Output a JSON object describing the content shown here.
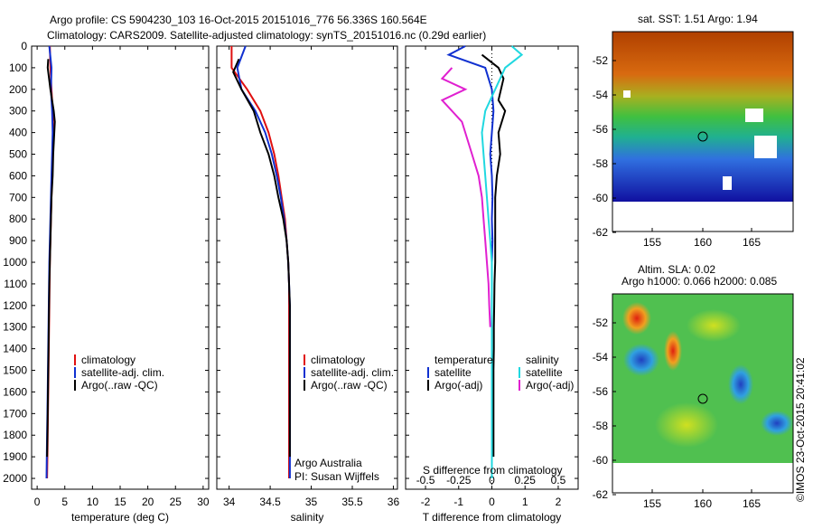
{
  "header": {
    "line1": "Argo profile: CS 5904230_103 16-Oct-2015 20151016_776 56.336S 160.564E",
    "line2": "Climatology: CARS2009. Satellite-adjusted climatology: synTS_20151016.nc (0.29d earlier)"
  },
  "colors": {
    "climatology": "#e01010",
    "satellite": "#1030d0",
    "argo": "#000000",
    "salinity_satellite": "#20d8e0",
    "salinity_argo": "#e020d0"
  },
  "chart_data": [
    {
      "type": "line",
      "id": "temperature",
      "xlabel": "temperature (deg C)",
      "ylabel": "",
      "xlim": [
        -1,
        31
      ],
      "ylim": [
        2050,
        0
      ],
      "xticks": [
        "0",
        "5",
        "10",
        "15",
        "20",
        "25",
        "30"
      ],
      "xtick_values": [
        0,
        5,
        10,
        15,
        20,
        25,
        30
      ],
      "yticks": [
        "0",
        "100",
        "200",
        "300",
        "400",
        "500",
        "600",
        "700",
        "800",
        "900",
        "1000",
        "1100",
        "1200",
        "1300",
        "1400",
        "1500",
        "1600",
        "1700",
        "1800",
        "1900",
        "2000"
      ],
      "ytick_values": [
        0,
        100,
        200,
        300,
        400,
        500,
        600,
        700,
        800,
        900,
        1000,
        1100,
        1200,
        1300,
        1400,
        1500,
        1600,
        1700,
        1800,
        1900,
        2000
      ],
      "legend": [
        "climatology",
        "satellite-adj. clim.",
        "Argo(..raw -QC)"
      ],
      "series": [
        {
          "name": "climatology",
          "color_key": "climatology",
          "x": [
            2.3,
            2.4,
            2.6,
            2.8,
            2.9,
            2.8,
            2.7,
            2.6,
            2.5,
            2.4,
            2.3,
            2.25,
            2.2,
            2.15,
            2.1,
            2.05,
            2.0,
            1.95,
            1.9,
            1.85,
            1.8
          ],
          "y": [
            0,
            100,
            200,
            300,
            400,
            500,
            600,
            700,
            800,
            900,
            1000,
            1100,
            1200,
            1300,
            1400,
            1500,
            1600,
            1700,
            1800,
            1900,
            2000
          ]
        },
        {
          "name": "satellite-adj. clim.",
          "color_key": "satellite",
          "x": [
            2.2,
            2.6,
            2.5,
            2.7,
            2.8,
            2.7,
            2.6,
            2.5,
            2.4,
            2.3,
            2.2,
            2.15,
            2.1,
            2.05,
            2.0,
            1.95,
            1.9,
            1.85,
            1.8,
            1.75,
            1.7
          ],
          "y": [
            0,
            100,
            200,
            300,
            400,
            500,
            600,
            700,
            800,
            900,
            1000,
            1100,
            1200,
            1300,
            1400,
            1500,
            1600,
            1700,
            1800,
            1900,
            2000
          ]
        },
        {
          "name": "Argo(..raw -QC)",
          "color_key": "argo",
          "x": [
            2.0,
            1.9,
            2.4,
            3.0,
            3.2,
            2.9,
            2.8,
            2.6,
            2.5,
            2.4,
            2.3,
            2.2,
            2.15,
            2.1,
            2.05,
            2.0,
            1.95,
            1.9,
            1.85,
            1.8
          ],
          "y": [
            60,
            100,
            200,
            300,
            350,
            500,
            600,
            700,
            800,
            900,
            1000,
            1100,
            1200,
            1300,
            1400,
            1500,
            1600,
            1700,
            1800,
            1900
          ]
        }
      ]
    },
    {
      "type": "line",
      "id": "salinity",
      "xlabel": "salinity",
      "xlim": [
        33.85,
        36.05
      ],
      "ylim": [
        2050,
        0
      ],
      "xticks": [
        "34",
        "34.5",
        "35",
        "35.5",
        "36"
      ],
      "xtick_values": [
        34,
        34.5,
        35,
        35.5,
        36
      ],
      "legend": [
        "climatology",
        "satellite-adj. clim.",
        "Argo(..raw -QC)"
      ],
      "annotation": [
        "Argo Australia",
        "PI: Susan Wijffels"
      ],
      "series": [
        {
          "name": "climatology",
          "color_key": "climatology",
          "x": [
            34.03,
            34.03,
            34.22,
            34.38,
            34.48,
            34.55,
            34.6,
            34.64,
            34.68,
            34.7,
            34.72,
            34.73,
            34.73,
            34.73,
            34.73,
            34.73,
            34.73,
            34.73,
            34.73,
            34.73,
            34.73
          ],
          "y": [
            0,
            100,
            200,
            300,
            400,
            500,
            600,
            700,
            800,
            900,
            1000,
            1100,
            1200,
            1300,
            1400,
            1500,
            1600,
            1700,
            1800,
            1900,
            2000
          ]
        },
        {
          "name": "satellite-adj. clim.",
          "color_key": "satellite",
          "x": [
            34.2,
            34.1,
            34.15,
            34.32,
            34.44,
            34.52,
            34.58,
            34.63,
            34.67,
            34.7,
            34.72,
            34.73,
            34.74,
            34.74,
            34.74,
            34.74,
            34.74,
            34.74,
            34.74,
            34.74,
            34.74
          ],
          "y": [
            0,
            100,
            200,
            300,
            400,
            500,
            600,
            700,
            800,
            900,
            1000,
            1100,
            1200,
            1300,
            1400,
            1500,
            1600,
            1700,
            1800,
            1900,
            2000
          ]
        },
        {
          "name": "Argo(..raw -QC)",
          "color_key": "argo",
          "x": [
            34.12,
            34.05,
            34.15,
            34.3,
            34.38,
            34.48,
            34.55,
            34.6,
            34.66,
            34.7,
            34.72,
            34.73,
            34.74,
            34.74,
            34.74,
            34.74,
            34.74,
            34.74,
            34.74,
            34.74
          ],
          "y": [
            60,
            120,
            200,
            300,
            400,
            500,
            600,
            700,
            800,
            900,
            1000,
            1100,
            1200,
            1300,
            1400,
            1500,
            1600,
            1700,
            1800,
            1900
          ]
        }
      ]
    },
    {
      "type": "line",
      "id": "difference",
      "xlabel": "T difference from climatology",
      "xlabel_top": "S difference from climatology",
      "xlim": [
        -2.6,
        2.6
      ],
      "ylim": [
        2050,
        0
      ],
      "xticks": [
        "-2",
        "-1",
        "0",
        "1",
        "2"
      ],
      "xtick_values": [
        -2,
        -1,
        0,
        1,
        2
      ],
      "sticks": [
        "-0.5",
        "-0.25",
        "0",
        "0.25",
        "0.5"
      ],
      "stick_values": [
        -0.5,
        -0.25,
        0,
        0.25,
        0.5
      ],
      "legend_temperature": {
        "title": "temperature",
        "items": [
          "satellite",
          "Argo(-adj)"
        ]
      },
      "legend_salinity": {
        "title": "salinity",
        "items": [
          "satellite",
          "Argo(-adj)"
        ]
      },
      "series": [
        {
          "name": "temperature satellite",
          "color_key": "satellite",
          "x": [
            -0.8,
            -1.3,
            -0.2,
            0,
            0.05,
            0,
            -0.05,
            0,
            0.02,
            0,
            0.02,
            0,
            0,
            0,
            0,
            0,
            0,
            0,
            0,
            0,
            0
          ],
          "y": [
            0,
            40,
            100,
            200,
            300,
            400,
            500,
            600,
            700,
            800,
            900,
            1000,
            1100,
            1200,
            1300,
            1400,
            1500,
            1600,
            1700,
            1800,
            2000
          ]
        },
        {
          "name": "temperature Argo(-adj)",
          "color_key": "argo",
          "x": [
            -0.3,
            0.2,
            0.35,
            0.2,
            0.4,
            0.2,
            0.25,
            0.15,
            0.1,
            0.1,
            0.1,
            0.1,
            0.08,
            0.07,
            0.06,
            0.06,
            0.05,
            0.05,
            0.05,
            0.05
          ],
          "y": [
            40,
            100,
            150,
            250,
            300,
            400,
            500,
            600,
            700,
            800,
            900,
            1000,
            1100,
            1200,
            1300,
            1400,
            1500,
            1600,
            1700,
            1900
          ]
        },
        {
          "name": "salinity satellite",
          "color_key": "salinity_satellite",
          "x": [
            0.6,
            0.9,
            0.4,
            0.1,
            -0.2,
            -0.3,
            -0.25,
            -0.2,
            -0.15,
            -0.1,
            -0.05,
            0,
            0,
            0,
            0,
            0,
            0,
            0,
            0,
            0,
            0
          ],
          "y": [
            0,
            40,
            100,
            200,
            300,
            400,
            500,
            600,
            700,
            800,
            900,
            1000,
            1100,
            1200,
            1300,
            1400,
            1500,
            1600,
            1700,
            1800,
            2000
          ]
        },
        {
          "name": "salinity Argo(-adj)",
          "color_key": "salinity_argo",
          "x": [
            -1.2,
            -1.5,
            -0.8,
            -1.5,
            -0.9,
            -0.6,
            -0.4,
            -0.3,
            -0.25,
            -0.2,
            -0.15,
            -0.1,
            -0.08,
            -0.05
          ],
          "y": [
            100,
            150,
            200,
            250,
            350,
            500,
            600,
            700,
            800,
            900,
            1000,
            1100,
            1200,
            1300
          ]
        }
      ]
    }
  ],
  "maps": {
    "sst": {
      "title": "sat. SST: 1.51  Argo: 1.94",
      "xticks": [
        "155",
        "160",
        "165"
      ],
      "yticks": [
        "-52",
        "-54",
        "-56",
        "-58",
        "-60",
        "-62"
      ]
    },
    "sla": {
      "title_line1": "Altim. SLA: 0.02",
      "title_line2": "Argo h1000: 0.066 h2000: 0.085",
      "xticks": [
        "155",
        "160",
        "165"
      ],
      "yticks": [
        "-52",
        "-54",
        "-56",
        "-58",
        "-60",
        "-62"
      ]
    }
  },
  "footer": {
    "stamp": "©IMOS 23-Oct-2015 20:41:02"
  }
}
